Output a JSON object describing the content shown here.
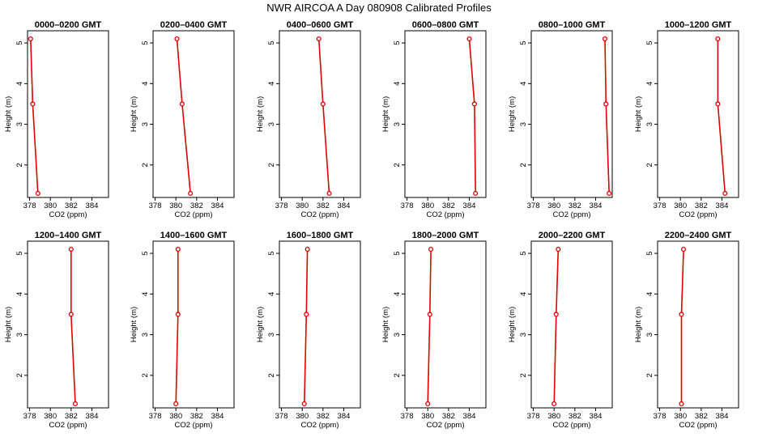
{
  "title": "NWR AIRCOA A  Day 080908  Calibrated Profiles",
  "xlabel": "CO2 (ppm)",
  "ylabel": "Height (m)",
  "chart_data": {
    "type": "line",
    "title": "NWR AIRCOA A  Day 080908  Calibrated Profiles",
    "xlabel": "CO2 (ppm)",
    "ylabel": "Height (m)",
    "xlim": [
      377.8,
      385.6
    ],
    "ylim": [
      1.2,
      5.3
    ],
    "xticks": [
      378,
      380,
      382,
      384
    ],
    "yticks": [
      2,
      3,
      4,
      5
    ],
    "line_color": "#e00000",
    "marker": "open-circle",
    "panels": [
      {
        "title": "0000–0200 GMT",
        "points": [
          {
            "x": 378.1,
            "y": 5.1
          },
          {
            "x": 378.3,
            "y": 3.5
          },
          {
            "x": 378.8,
            "y": 1.3
          }
        ]
      },
      {
        "title": "0200–0400 GMT",
        "points": [
          {
            "x": 380.1,
            "y": 5.1
          },
          {
            "x": 380.6,
            "y": 3.5
          },
          {
            "x": 381.4,
            "y": 1.3
          }
        ]
      },
      {
        "title": "0400–0600 GMT",
        "points": [
          {
            "x": 381.6,
            "y": 5.1
          },
          {
            "x": 382.0,
            "y": 3.5
          },
          {
            "x": 382.6,
            "y": 1.3
          }
        ]
      },
      {
        "title": "0600–0800 GMT",
        "points": [
          {
            "x": 384.0,
            "y": 5.1
          },
          {
            "x": 384.5,
            "y": 3.5
          },
          {
            "x": 384.6,
            "y": 1.3
          }
        ]
      },
      {
        "title": "0800–1000 GMT",
        "points": [
          {
            "x": 384.9,
            "y": 5.1
          },
          {
            "x": 385.0,
            "y": 3.5
          },
          {
            "x": 385.3,
            "y": 1.3
          }
        ]
      },
      {
        "title": "1000–1200 GMT",
        "points": [
          {
            "x": 383.6,
            "y": 5.1
          },
          {
            "x": 383.6,
            "y": 3.5
          },
          {
            "x": 384.3,
            "y": 1.3
          }
        ]
      },
      {
        "title": "1200–1400 GMT",
        "points": [
          {
            "x": 382.0,
            "y": 5.1
          },
          {
            "x": 382.0,
            "y": 3.5
          },
          {
            "x": 382.4,
            "y": 1.3
          }
        ]
      },
      {
        "title": "1400–1600 GMT",
        "points": [
          {
            "x": 380.2,
            "y": 5.1
          },
          {
            "x": 380.2,
            "y": 3.5
          },
          {
            "x": 380.0,
            "y": 1.3
          }
        ]
      },
      {
        "title": "1600–1800 GMT",
        "points": [
          {
            "x": 380.5,
            "y": 5.1
          },
          {
            "x": 380.4,
            "y": 3.5
          },
          {
            "x": 380.2,
            "y": 1.3
          }
        ]
      },
      {
        "title": "1800–2000 GMT",
        "points": [
          {
            "x": 380.3,
            "y": 5.1
          },
          {
            "x": 380.2,
            "y": 3.5
          },
          {
            "x": 380.0,
            "y": 1.3
          }
        ]
      },
      {
        "title": "2000–2200 GMT",
        "points": [
          {
            "x": 380.4,
            "y": 5.1
          },
          {
            "x": 380.2,
            "y": 3.5
          },
          {
            "x": 380.0,
            "y": 1.3
          }
        ]
      },
      {
        "title": "2200–2400 GMT",
        "points": [
          {
            "x": 380.3,
            "y": 5.1
          },
          {
            "x": 380.1,
            "y": 3.5
          },
          {
            "x": 380.1,
            "y": 1.3
          }
        ]
      }
    ]
  }
}
